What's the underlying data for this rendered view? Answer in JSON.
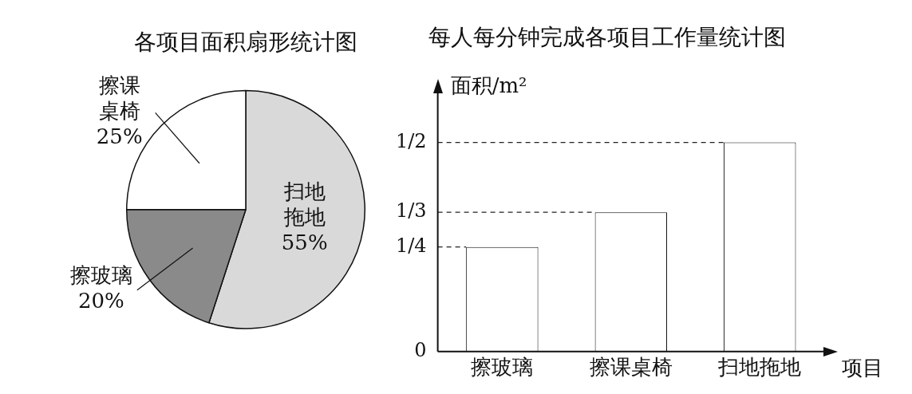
{
  "chart_data": [
    {
      "type": "pie",
      "title": "各项目面积扇形统计图",
      "categories": [
        "扫地拖地",
        "擦玻璃",
        "擦课桌椅"
      ],
      "values": [
        55,
        20,
        25
      ],
      "colors": [
        "#d9d9d9",
        "#8a8a8a",
        "#ffffff"
      ],
      "value_labels": [
        "55%",
        "20%",
        "25%"
      ]
    },
    {
      "type": "bar",
      "title": "每人每分钟完成各项目工作量统计图",
      "ylabel": "面积/m²",
      "xlabel": "项目",
      "categories": [
        "擦玻璃",
        "擦课桌椅",
        "扫地拖地"
      ],
      "values": [
        0.25,
        0.333,
        0.5
      ],
      "color": "#ffffff",
      "ylim": [
        0,
        0.62
      ],
      "yticks": [
        0,
        {
          "value": 0.25,
          "label": "1/4"
        },
        {
          "value": 0.333,
          "label": "1/3"
        },
        {
          "value": 0.5,
          "label": "1/2"
        }
      ],
      "grid": false,
      "ref_lines": [
        {
          "axis": "y",
          "value": 0.25,
          "line_style": "dashed"
        },
        {
          "axis": "y",
          "value": 0.333,
          "line_style": "dashed"
        },
        {
          "axis": "y",
          "value": 0.5,
          "line_style": "dashed"
        }
      ]
    }
  ]
}
